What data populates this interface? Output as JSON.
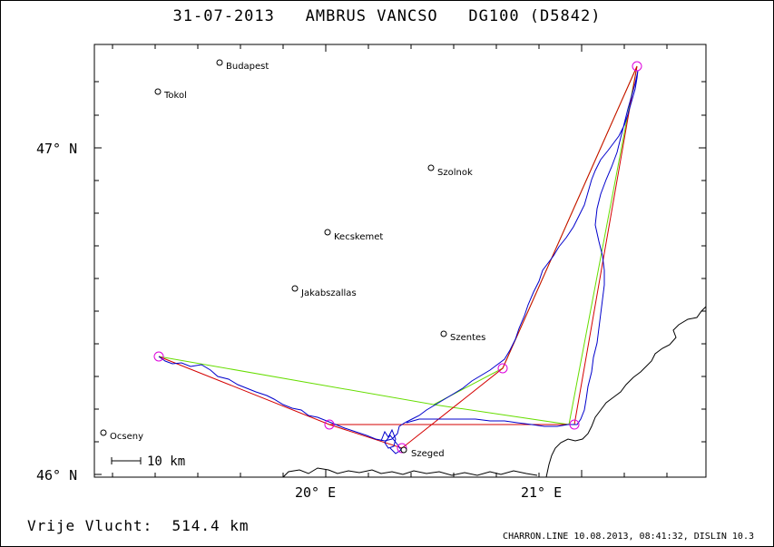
{
  "header": {
    "date": "31-07-2013",
    "pilot": "AMBRUS VANCSO",
    "glider": "DG100 (D5842)"
  },
  "axes": {
    "lat_labels": [
      "47° N",
      "46° N"
    ],
    "lon_labels": [
      "20° E",
      "21° E"
    ]
  },
  "scale": {
    "label": "10 km"
  },
  "cities": [
    {
      "name": "Budapest"
    },
    {
      "name": "Tokol"
    },
    {
      "name": "Szolnok"
    },
    {
      "name": "Kecskemet"
    },
    {
      "name": "Jakabszallas"
    },
    {
      "name": "Szentes"
    },
    {
      "name": "Szeged"
    },
    {
      "name": "Ocseny"
    }
  ],
  "result": {
    "label": "Vrije Vlucht:",
    "value": "514.4 km"
  },
  "footer": {
    "text": "CHARRON.LINE 10.08.2013, 08:41:32, DISLIN 10.3"
  },
  "colors": {
    "track": "#0000cc",
    "task": "#d40000",
    "optimized": "#66dd00",
    "turnpoint": "#dd00dd",
    "border": "#000000"
  }
}
